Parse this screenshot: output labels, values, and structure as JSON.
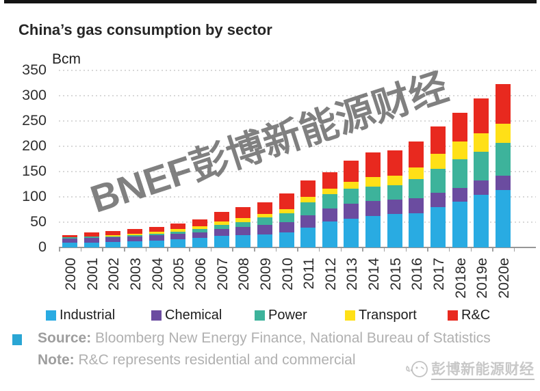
{
  "title": "China’s gas consumption by sector",
  "chart_data": {
    "type": "bar",
    "stacked": true,
    "title": "China’s gas consumption by sector",
    "ylabel": "Bcm",
    "ylim": [
      0,
      350
    ],
    "ytick_step": 50,
    "grid": "horizontal-dotted",
    "legend_position": "bottom",
    "categories": [
      "2000",
      "2001",
      "2002",
      "2003",
      "2004",
      "2005",
      "2006",
      "2007",
      "2008",
      "2009",
      "2010",
      "2011",
      "2012",
      "2013",
      "2014",
      "2015",
      "2016",
      "2017",
      "2018e",
      "2019e",
      "2020e"
    ],
    "series": [
      {
        "name": "Industrial",
        "color": "#29ABE2",
        "values": [
          9,
          10,
          11,
          12,
          14,
          16,
          19,
          23,
          25,
          26,
          30,
          39,
          52,
          57,
          62,
          66,
          68,
          80,
          91,
          104,
          113
        ]
      },
      {
        "name": "Chemical",
        "color": "#6B4CA0",
        "values": [
          9,
          9,
          9,
          10,
          10,
          11,
          11,
          13,
          15,
          19,
          20,
          25,
          25,
          30,
          30,
          29,
          29,
          28,
          27,
          29,
          29
        ]
      },
      {
        "name": "Power",
        "color": "#3DB39B",
        "values": [
          2,
          2,
          2,
          2,
          3,
          4,
          6,
          8,
          10,
          14,
          18,
          25,
          29,
          29,
          29,
          28,
          38,
          48,
          56,
          57,
          65
        ]
      },
      {
        "name": "Transport",
        "color": "#FFE017",
        "values": [
          1,
          1,
          2,
          3,
          4,
          5,
          6,
          7,
          8,
          8,
          8,
          11,
          11,
          14,
          18,
          19,
          23,
          29,
          36,
          36,
          38
        ]
      },
      {
        "name": "R&C",
        "color": "#E8291F",
        "values": [
          4,
          8,
          8,
          9,
          10,
          11,
          14,
          19,
          22,
          22,
          31,
          33,
          32,
          42,
          49,
          50,
          52,
          55,
          57,
          69,
          78
        ]
      }
    ]
  },
  "watermark": {
    "text": "BNEF彭博新能源财经"
  },
  "footer": {
    "source_label": "Source:",
    "source_text": " Bloomberg New Energy Finance, National Bureau of Statistics",
    "note_label": "Note:",
    "note_text": " R&C represents residential and commercial",
    "accent_color": "#2AA6D4"
  },
  "logo": {
    "text": "彭博新能源财经"
  }
}
